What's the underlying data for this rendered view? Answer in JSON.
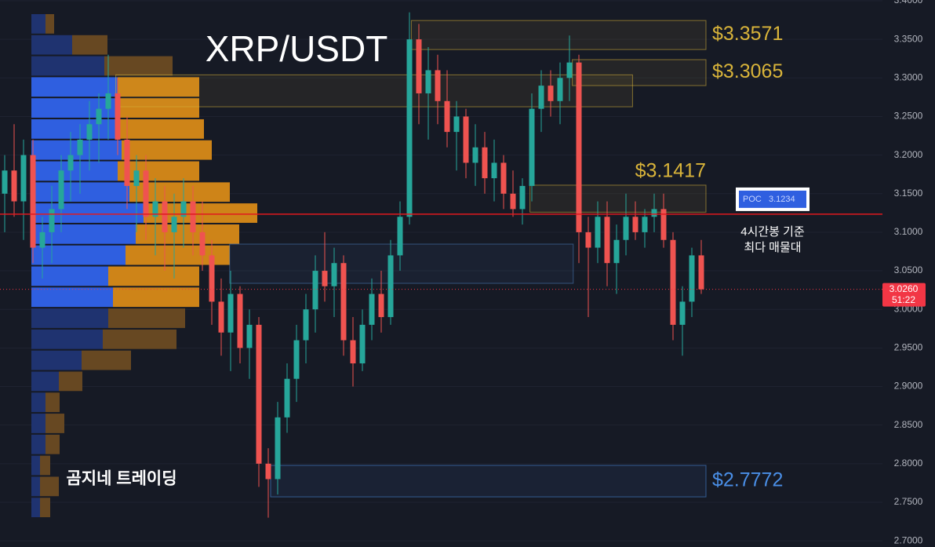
{
  "chart_data": {
    "type": "candlestick",
    "title": "XRP/USDT",
    "watermark": "곰지네 트레이딩",
    "ylim": [
      2.692,
      3.401
    ],
    "xlim": [
      -0.5,
      74.5
    ],
    "yticks": [
      {
        "value": 3.4,
        "label": "3.4000"
      },
      {
        "value": 3.35,
        "label": "3.3500"
      },
      {
        "value": 3.3,
        "label": "3.3000"
      },
      {
        "value": 3.25,
        "label": "3.2500"
      },
      {
        "value": 3.2,
        "label": "3.2000"
      },
      {
        "value": 3.15,
        "label": "3.1500"
      },
      {
        "value": 3.1,
        "label": "3.1000"
      },
      {
        "value": 3.05,
        "label": "3.0500"
      },
      {
        "value": 3.0,
        "label": "3.0000"
      },
      {
        "value": 2.95,
        "label": "2.9500"
      },
      {
        "value": 2.9,
        "label": "2.9000"
      },
      {
        "value": 2.85,
        "label": "2.8500"
      },
      {
        "value": 2.8,
        "label": "2.8000"
      },
      {
        "value": 2.75,
        "label": "2.7500"
      },
      {
        "value": 2.7,
        "label": "2.7000"
      }
    ],
    "grid": true,
    "up_color": "#26a69a",
    "down_color": "#ef5350",
    "candles": [
      [
        3.15,
        3.2,
        3.1,
        3.18
      ],
      [
        3.18,
        3.24,
        3.12,
        3.14
      ],
      [
        3.14,
        3.22,
        3.09,
        3.2
      ],
      [
        3.2,
        3.22,
        3.06,
        3.08
      ],
      [
        3.08,
        3.12,
        3.04,
        3.1
      ],
      [
        3.1,
        3.16,
        3.06,
        3.13
      ],
      [
        3.13,
        3.2,
        3.1,
        3.18
      ],
      [
        3.18,
        3.23,
        3.14,
        3.2
      ],
      [
        3.2,
        3.24,
        3.15,
        3.22
      ],
      [
        3.22,
        3.27,
        3.18,
        3.24
      ],
      [
        3.24,
        3.28,
        3.19,
        3.26
      ],
      [
        3.26,
        3.33,
        3.22,
        3.28
      ],
      [
        3.28,
        3.3,
        3.2,
        3.22
      ],
      [
        3.22,
        3.25,
        3.13,
        3.16
      ],
      [
        3.16,
        3.2,
        3.1,
        3.18
      ],
      [
        3.18,
        3.2,
        3.09,
        3.12
      ],
      [
        3.12,
        3.17,
        3.07,
        3.14
      ],
      [
        3.14,
        3.16,
        3.05,
        3.1
      ],
      [
        3.1,
        3.15,
        3.04,
        3.12
      ],
      [
        3.12,
        3.17,
        3.08,
        3.14
      ],
      [
        3.14,
        3.16,
        3.07,
        3.1
      ],
      [
        3.1,
        3.14,
        3.05,
        3.07
      ],
      [
        3.07,
        3.09,
        2.98,
        3.01
      ],
      [
        3.01,
        3.04,
        2.94,
        2.97
      ],
      [
        2.97,
        3.05,
        2.92,
        3.02
      ],
      [
        3.02,
        3.03,
        2.93,
        2.95
      ],
      [
        2.95,
        3.0,
        2.91,
        2.98
      ],
      [
        2.98,
        2.99,
        2.77,
        2.8
      ],
      [
        2.8,
        2.82,
        2.73,
        2.78
      ],
      [
        2.78,
        2.88,
        2.76,
        2.86
      ],
      [
        2.86,
        2.93,
        2.84,
        2.91
      ],
      [
        2.91,
        2.98,
        2.88,
        2.96
      ],
      [
        2.96,
        3.02,
        2.93,
        3.0
      ],
      [
        3.0,
        3.07,
        2.97,
        3.05
      ],
      [
        3.05,
        3.1,
        3.01,
        3.03
      ],
      [
        3.03,
        3.08,
        2.99,
        3.06
      ],
      [
        3.06,
        3.07,
        2.94,
        2.96
      ],
      [
        2.96,
        2.99,
        2.9,
        2.93
      ],
      [
        2.93,
        3.0,
        2.92,
        2.98
      ],
      [
        2.98,
        3.04,
        2.96,
        3.02
      ],
      [
        3.02,
        3.05,
        2.97,
        2.99
      ],
      [
        2.99,
        3.09,
        2.98,
        3.07
      ],
      [
        3.07,
        3.14,
        3.05,
        3.12
      ],
      [
        3.12,
        3.385,
        3.11,
        3.35
      ],
      [
        3.35,
        3.37,
        3.24,
        3.28
      ],
      [
        3.28,
        3.34,
        3.22,
        3.31
      ],
      [
        3.31,
        3.33,
        3.24,
        3.27
      ],
      [
        3.27,
        3.31,
        3.21,
        3.23
      ],
      [
        3.23,
        3.27,
        3.18,
        3.25
      ],
      [
        3.25,
        3.26,
        3.17,
        3.19
      ],
      [
        3.19,
        3.24,
        3.16,
        3.21
      ],
      [
        3.21,
        3.23,
        3.15,
        3.17
      ],
      [
        3.17,
        3.22,
        3.14,
        3.19
      ],
      [
        3.19,
        3.2,
        3.13,
        3.15
      ],
      [
        3.15,
        3.18,
        3.12,
        3.13
      ],
      [
        3.13,
        3.17,
        3.11,
        3.16
      ],
      [
        3.16,
        3.28,
        3.14,
        3.26
      ],
      [
        3.26,
        3.31,
        3.23,
        3.29
      ],
      [
        3.29,
        3.31,
        3.25,
        3.27
      ],
      [
        3.27,
        3.32,
        3.24,
        3.3
      ],
      [
        3.3,
        3.355,
        3.27,
        3.32
      ],
      [
        3.32,
        3.33,
        3.06,
        3.1
      ],
      [
        3.1,
        3.12,
        2.99,
        3.08
      ],
      [
        3.08,
        3.14,
        3.06,
        3.12
      ],
      [
        3.12,
        3.14,
        3.03,
        3.06
      ],
      [
        3.06,
        3.11,
        3.02,
        3.09
      ],
      [
        3.09,
        3.15,
        3.07,
        3.12
      ],
      [
        3.12,
        3.14,
        3.09,
        3.1
      ],
      [
        3.1,
        3.13,
        3.08,
        3.12
      ],
      [
        3.12,
        3.15,
        3.1,
        3.13
      ],
      [
        3.13,
        3.15,
        3.08,
        3.09
      ],
      [
        3.09,
        3.1,
        2.96,
        2.98
      ],
      [
        2.98,
        3.03,
        2.94,
        3.01
      ],
      [
        3.01,
        3.08,
        2.99,
        3.07
      ],
      [
        3.07,
        3.09,
        3.02,
        3.026
      ]
    ],
    "volume_profile": {
      "ylim": [
        2.7296,
        3.3837
      ],
      "buy_color": "#2f5fe0",
      "buy_dim_color": "#1f3370",
      "sell_color": "#d88a17",
      "sell_dim_color": "#6b4b22",
      "buy": [
        18,
        52,
        93,
        110,
        108,
        113,
        115,
        110,
        125,
        143,
        133,
        120,
        98,
        104,
        98,
        91,
        64,
        35,
        18,
        18,
        18,
        11,
        11,
        11
      ],
      "sell": [
        11,
        45,
        87,
        104,
        106,
        107,
        115,
        104,
        128,
        145,
        132,
        133,
        116,
        110,
        98,
        94,
        63,
        30,
        18,
        24,
        18,
        13,
        24,
        13
      ]
    },
    "boxes": [
      {
        "x": [
          43.2,
          74.5
        ],
        "y": [
          3.3368,
          3.3744
        ],
        "label": "$3.3571",
        "label_position": "right",
        "color": "#d9b43a"
      },
      {
        "x": [
          11.8,
          66.7
        ],
        "y": [
          3.2626,
          3.304
        ],
        "color": "#d9b43a"
      },
      {
        "x": [
          60.3,
          74.5
        ],
        "y": [
          3.2901,
          3.3237
        ],
        "label": "$3.3065",
        "label_position": "right",
        "color": "#d9b43a"
      },
      {
        "x": [
          55.8,
          74.5
        ],
        "y": [
          3.126,
          3.161
        ],
        "label": "$3.1417",
        "label_position": "top",
        "color": "#d9b43a"
      },
      {
        "x": [
          23.9,
          60.4
        ],
        "y": [
          3.0338,
          3.0846
        ],
        "color": "#4a7fc0"
      },
      {
        "x": [
          28.25,
          74.5
        ],
        "y": [
          2.757,
          2.7978
        ],
        "label": "$2.7772",
        "label_position": "right",
        "color": "#4a8fe7"
      }
    ],
    "poc": {
      "name": "POC",
      "price": {
        "value": 3.1234,
        "label": "3.1234"
      },
      "color": "#e0191f"
    },
    "annotation": [
      "4시간봉 기준",
      "최다 매물대"
    ],
    "last_price": {
      "price": {
        "value": 3.026,
        "label": "3.0260"
      },
      "countdown": "51:22",
      "color": "#f23645"
    }
  }
}
